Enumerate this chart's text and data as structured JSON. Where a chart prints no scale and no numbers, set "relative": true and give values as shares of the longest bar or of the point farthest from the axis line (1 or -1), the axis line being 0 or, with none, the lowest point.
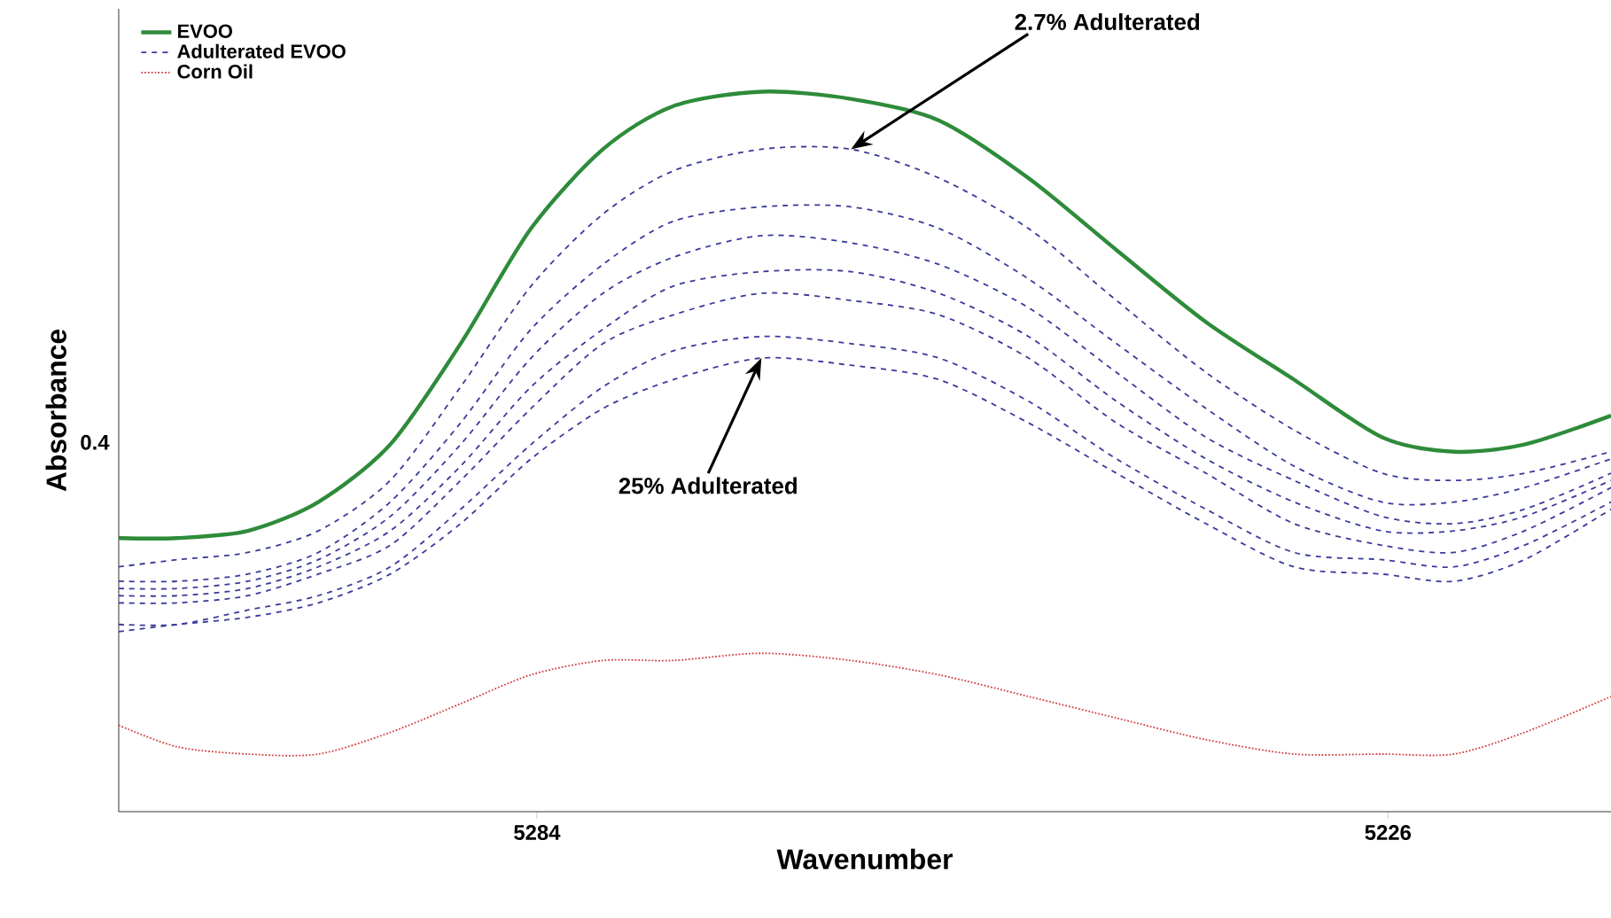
{
  "chart_data": {
    "type": "line",
    "relative": true,
    "xlabel": "Wavenumber",
    "ylabel": "Absorbance",
    "xlim": [
      5312.5,
      5210.8
    ],
    "xticks": [
      5284,
      5226
    ],
    "legend": "top left",
    "x": [
      5312.5,
      5308.5,
      5303.7,
      5298.9,
      5294.0,
      5289.2,
      5284.4,
      5279.5,
      5274.7,
      5268.7,
      5262.6,
      5256.6,
      5250.5,
      5244.5,
      5238.4,
      5232.4,
      5226.4,
      5221.5,
      5216.7,
      5210.8
    ],
    "series": [
      {
        "name": "EVOO",
        "color": "#2e8b3a",
        "line_style": "solid",
        "values": [
          0.38,
          0.38,
          0.39,
          0.43,
          0.51,
          0.65,
          0.81,
          0.92,
          0.98,
          1.0,
          0.99,
          0.96,
          0.88,
          0.78,
          0.68,
          0.6,
          0.52,
          0.5,
          0.51,
          0.55
        ]
      },
      {
        "name": "Adulterated EVOO",
        "color": "#3a3a9a",
        "line_style": "dashed",
        "values": [
          0.34,
          0.35,
          0.36,
          0.39,
          0.46,
          0.59,
          0.73,
          0.83,
          0.89,
          0.92,
          0.92,
          0.88,
          0.81,
          0.71,
          0.61,
          0.53,
          0.47,
          0.46,
          0.47,
          0.5
        ]
      },
      {
        "color": "#3a3a9a",
        "line_style": "dashed",
        "values": [
          0.32,
          0.32,
          0.33,
          0.36,
          0.43,
          0.54,
          0.67,
          0.76,
          0.82,
          0.84,
          0.84,
          0.81,
          0.74,
          0.65,
          0.56,
          0.48,
          0.43,
          0.43,
          0.45,
          0.49
        ]
      },
      {
        "color": "#3a3a9a",
        "line_style": "dashed",
        "values": [
          0.31,
          0.31,
          0.32,
          0.35,
          0.41,
          0.51,
          0.63,
          0.72,
          0.77,
          0.8,
          0.79,
          0.76,
          0.7,
          0.61,
          0.52,
          0.46,
          0.41,
          0.4,
          0.42,
          0.47
        ]
      },
      {
        "color": "#3a3a9a",
        "line_style": "dashed",
        "values": [
          0.3,
          0.3,
          0.31,
          0.34,
          0.39,
          0.48,
          0.59,
          0.67,
          0.73,
          0.75,
          0.75,
          0.72,
          0.66,
          0.57,
          0.49,
          0.43,
          0.39,
          0.39,
          0.41,
          0.46
        ]
      },
      {
        "color": "#3a3a9a",
        "line_style": "dashed",
        "values": [
          0.29,
          0.29,
          0.3,
          0.33,
          0.37,
          0.46,
          0.56,
          0.65,
          0.69,
          0.72,
          0.71,
          0.69,
          0.63,
          0.54,
          0.47,
          0.4,
          0.37,
          0.36,
          0.39,
          0.45
        ]
      },
      {
        "color": "#3a3a9a",
        "line_style": "dashed",
        "values": [
          0.26,
          0.26,
          0.28,
          0.3,
          0.34,
          0.42,
          0.51,
          0.59,
          0.64,
          0.66,
          0.65,
          0.63,
          0.57,
          0.49,
          0.42,
          0.36,
          0.35,
          0.34,
          0.37,
          0.43
        ]
      },
      {
        "color": "#3a3a9a",
        "line_style": "dashed",
        "values": [
          0.25,
          0.26,
          0.27,
          0.29,
          0.33,
          0.4,
          0.49,
          0.56,
          0.6,
          0.63,
          0.62,
          0.6,
          0.54,
          0.47,
          0.4,
          0.34,
          0.33,
          0.32,
          0.35,
          0.42
        ]
      },
      {
        "name": "Corn Oil",
        "color": "#d04040",
        "line_style": "dotted",
        "values": [
          0.12,
          0.09,
          0.08,
          0.08,
          0.11,
          0.15,
          0.19,
          0.21,
          0.21,
          0.22,
          0.21,
          0.19,
          0.16,
          0.13,
          0.1,
          0.08,
          0.08,
          0.08,
          0.11,
          0.16
        ]
      }
    ],
    "annotations": [
      {
        "text": "2.7% Adulterated",
        "x": 5262.6,
        "y": 0.92
      },
      {
        "text": "25% Adulterated",
        "x": 5268.7,
        "y": 0.63
      },
      "0.4"
    ]
  }
}
